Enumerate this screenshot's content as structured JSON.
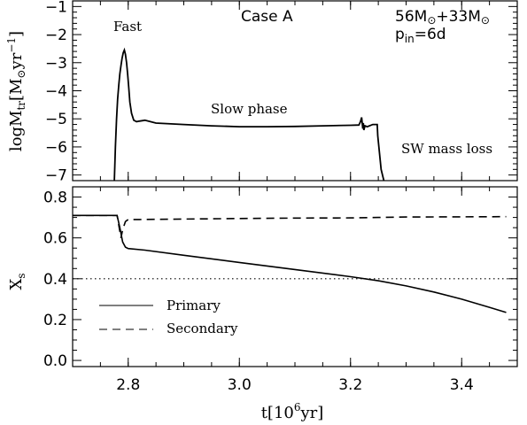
{
  "chart_data": [
    {
      "type": "line",
      "panel": "top",
      "ylabel": {
        "base": "logM",
        "sub": "tr",
        "unit_open": "[M",
        "sun": "⊙",
        "unit_mid": "yr",
        "exp": "−1",
        "unit_close": "]"
      },
      "xlim": [
        2.7,
        3.5
      ],
      "ylim": [
        -7.2,
        -0.8
      ],
      "yticks": [
        -1,
        -2,
        -3,
        -4,
        -5,
        -6,
        -7
      ],
      "ytick_labels": [
        "−1",
        "−2",
        "−3",
        "−4",
        "−5",
        "−6",
        "−7"
      ],
      "annotations": {
        "fast": "Fast",
        "slow": "Slow phase",
        "sw": "SW mass loss",
        "case": "Case A",
        "masses": {
          "m1": "56M",
          "plus": "+33M",
          "sun": "⊙"
        },
        "period": {
          "p": "p",
          "sub": "in",
          "val": "=6d"
        }
      },
      "series": [
        {
          "style": "solid",
          "x": [
            2.775,
            2.777,
            2.779,
            2.781,
            2.783,
            2.785,
            2.787,
            2.789,
            2.791,
            2.793,
            2.795,
            2.797,
            2.799,
            2.801,
            2.803,
            2.806,
            2.81,
            2.815,
            2.82,
            2.83,
            2.85,
            2.9,
            2.95,
            3.0,
            3.05,
            3.1,
            3.15,
            3.2,
            3.215,
            3.218,
            3.22,
            3.222,
            3.223,
            3.224,
            3.226,
            3.23,
            3.24,
            3.248,
            3.249,
            3.252,
            3.255,
            3.26
          ],
          "y": [
            -7.2,
            -6.0,
            -5.0,
            -4.3,
            -3.8,
            -3.4,
            -3.1,
            -2.85,
            -2.65,
            -2.55,
            -2.7,
            -3.0,
            -3.4,
            -3.9,
            -4.4,
            -4.8,
            -5.05,
            -5.1,
            -5.08,
            -5.05,
            -5.15,
            -5.2,
            -5.25,
            -5.28,
            -5.28,
            -5.27,
            -5.25,
            -5.23,
            -5.22,
            -5.1,
            -4.95,
            -5.35,
            -5.15,
            -5.4,
            -5.25,
            -5.28,
            -5.2,
            -5.2,
            -5.6,
            -6.2,
            -6.8,
            -7.2
          ]
        }
      ]
    },
    {
      "type": "line",
      "panel": "bottom",
      "xlabel": {
        "base": "t[10",
        "exp": "6",
        "rest": "yr]"
      },
      "ylabel": {
        "base": "X",
        "sub": "s"
      },
      "xlim": [
        2.7,
        3.5
      ],
      "ylim": [
        -0.03,
        0.85
      ],
      "xticks": [
        2.8,
        3.0,
        3.2,
        3.4
      ],
      "xtick_labels": [
        "2.8",
        "3.0",
        "3.2",
        "3.4"
      ],
      "yticks": [
        0.0,
        0.2,
        0.4,
        0.6,
        0.8
      ],
      "ytick_labels": [
        "0.0",
        "0.2",
        "0.4",
        "0.6",
        "0.8"
      ],
      "reference_line": {
        "y": 0.4,
        "style": "dotted"
      },
      "legend": {
        "placement": "lower-left"
      },
      "series": [
        {
          "name": "Primary",
          "style": "solid",
          "x": [
            2.7,
            2.78,
            2.785,
            2.79,
            2.795,
            2.8,
            2.83,
            2.9,
            3.0,
            3.1,
            3.2,
            3.25,
            3.3,
            3.35,
            3.4,
            3.45,
            3.48
          ],
          "y": [
            0.71,
            0.71,
            0.65,
            0.58,
            0.555,
            0.548,
            0.54,
            0.515,
            0.48,
            0.445,
            0.41,
            0.39,
            0.365,
            0.335,
            0.3,
            0.26,
            0.235
          ]
        },
        {
          "name": "Secondary",
          "style": "dashed",
          "x": [
            2.7,
            2.78,
            2.787,
            2.79,
            2.795,
            2.8,
            2.82,
            2.9,
            3.0,
            3.1,
            3.2,
            3.25,
            3.3,
            3.4,
            3.48
          ],
          "y": [
            0.71,
            0.71,
            0.6,
            0.64,
            0.68,
            0.69,
            0.69,
            0.692,
            0.695,
            0.697,
            0.698,
            0.7,
            0.702,
            0.703,
            0.704
          ]
        }
      ]
    }
  ]
}
